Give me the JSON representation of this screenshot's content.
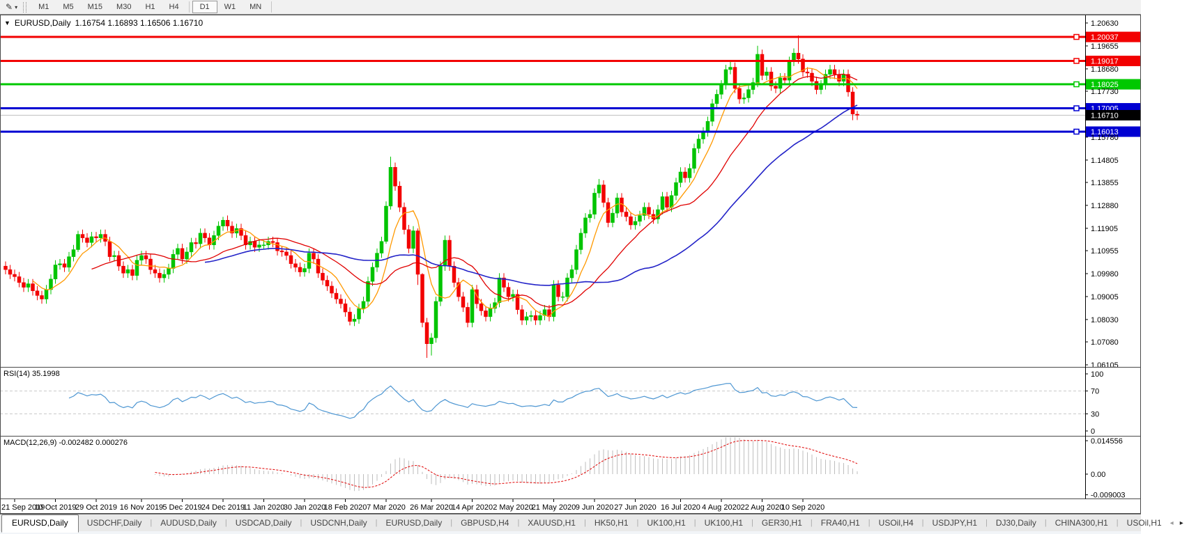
{
  "toolbar": {
    "draw_tool_glyph": "✎",
    "dropdown_glyph": "▾",
    "timeframes": [
      "M1",
      "M5",
      "M15",
      "M30",
      "H1",
      "H4",
      "D1",
      "W1",
      "MN"
    ],
    "active_timeframe": "D1"
  },
  "chart": {
    "collapse_glyph": "▼",
    "title_symbol": "EURUSD,Daily",
    "title_quotes": "1.16754 1.16893 1.16506 1.16710"
  },
  "panes": {
    "rsi": {
      "label": "RSI(14) 35.1998"
    },
    "macd": {
      "label": "MACD(12,26,9) -0.002482 0.000276"
    }
  },
  "tabs": {
    "separator": "|",
    "scroll_left_glyph": "◂",
    "scroll_right_glyph": "▸",
    "active_index": 0,
    "items": [
      "EURUSD,Daily",
      "USDCHF,Daily",
      "AUDUSD,Daily",
      "USDCAD,Daily",
      "USDCNH,Daily",
      "EURUSD,Daily",
      "GBPUSD,H4",
      "XAUUSD,H1",
      "HK50,H1",
      "UK100,H1",
      "UK100,H1",
      "GER30,H1",
      "FRA40,H1",
      "USOil,H4",
      "USDJPY,H1",
      "DJ30,Daily",
      "CHINA300,H1",
      "USOil,H1"
    ]
  },
  "chart_data": {
    "type": "candlestick",
    "symbol": "EURUSD",
    "timeframe": "Daily",
    "colors": {
      "bull": "#00c400",
      "bear": "#f20000"
    },
    "current_price": {
      "value": 1.1671,
      "label": "1.16710",
      "line_color": "#c0c0c0",
      "label_bg": "#000000"
    },
    "levels": [
      {
        "price": 1.20037,
        "label": "1.20037",
        "color": "#f20000"
      },
      {
        "price": 1.19017,
        "label": "1.19017",
        "color": "#f20000"
      },
      {
        "price": 1.18025,
        "label": "1.18025",
        "color": "#00c800"
      },
      {
        "price": 1.17005,
        "label": "1.17005",
        "color": "#0000d2"
      },
      {
        "price": 1.16013,
        "label": "1.16013",
        "color": "#0000d2"
      }
    ],
    "price_axis": [
      {
        "label": "1.20630",
        "value": 1.2063
      },
      {
        "label": "1.19655",
        "value": 1.19655
      },
      {
        "label": "1.18680",
        "value": 1.1868
      },
      {
        "label": "1.17730",
        "value": 1.1773
      },
      {
        "label": "1.15780",
        "value": 1.1578
      },
      {
        "label": "1.14805",
        "value": 1.14805
      },
      {
        "label": "1.13855",
        "value": 1.13855
      },
      {
        "label": "1.12880",
        "value": 1.1288
      },
      {
        "label": "1.11905",
        "value": 1.11905
      },
      {
        "label": "1.10955",
        "value": 1.10955
      },
      {
        "label": "1.09980",
        "value": 1.0998
      },
      {
        "label": "1.09005",
        "value": 1.09005
      },
      {
        "label": "1.08030",
        "value": 1.0803
      },
      {
        "label": "1.07080",
        "value": 1.0708
      },
      {
        "label": "1.06105",
        "value": 1.06105
      }
    ],
    "rsi_axis": [
      {
        "label": "100",
        "value": 100,
        "dashed": false
      },
      {
        "label": "70",
        "value": 70,
        "dashed": true
      },
      {
        "label": "30",
        "value": 30,
        "dashed": true
      },
      {
        "label": "0",
        "value": 0,
        "dashed": false
      }
    ],
    "macd_axis": [
      {
        "label": "0.014556",
        "value": 0.014556
      },
      {
        "label": "0.00",
        "value": 0
      },
      {
        "label": "-0.009003",
        "value": -0.009003
      }
    ],
    "moving_averages": [
      {
        "period": 7,
        "color": "#ff9900",
        "width": 1.3
      },
      {
        "period": 20,
        "color": "#e00000",
        "width": 1.3
      },
      {
        "period": 45,
        "color": "#2323c8",
        "width": 1.6
      }
    ],
    "indicators": [
      {
        "name": "RSI",
        "params": [
          14
        ],
        "line_color": "#4d96d2",
        "value": 35.1998
      },
      {
        "name": "MACD",
        "params": [
          12,
          26,
          9
        ],
        "hist_color": "#bebebe",
        "signal_color": "#e00000",
        "values": [
          -0.002482,
          0.000276
        ]
      }
    ],
    "x_tick_labels": [
      "21 Sep 2019",
      "10 Oct 2019",
      "29 Oct 2019",
      "16 Nov 2019",
      "5 Dec 2019",
      "24 Dec 2019",
      "11 Jan 2020",
      "30 Jan 2020",
      "18 Feb 2020",
      "7 Mar 2020",
      "26 Mar 2020",
      "14 Apr 2020",
      "2 May 2020",
      "21 May 2020",
      "9 Jun 2020",
      "27 Jun 2020",
      "16 Jul 2020",
      "4 Aug 2020",
      "22 Aug 2020",
      "10 Sep 2020"
    ],
    "tick_candle_indices": [
      2,
      11,
      20,
      30,
      39,
      48,
      57,
      66,
      75,
      84,
      94,
      103,
      112,
      121,
      130,
      139,
      149,
      158,
      167,
      176
    ],
    "ohlc": [
      [
        1.103,
        1.105,
        1.0995,
        1.1015
      ],
      [
        1.1015,
        1.1035,
        1.0975,
        1.0995
      ],
      [
        1.0995,
        1.1015,
        1.0965,
        1.0985
      ],
      [
        1.0985,
        1.1005,
        1.094,
        1.096
      ],
      [
        1.096,
        1.098,
        1.092,
        1.094
      ],
      [
        1.094,
        1.0975,
        1.092,
        1.0955
      ],
      [
        1.0955,
        1.0975,
        1.0905,
        1.0925
      ],
      [
        1.0925,
        1.0945,
        1.0885,
        1.0905
      ],
      [
        1.0905,
        1.0925,
        1.087,
        1.089
      ],
      [
        1.089,
        1.095,
        1.087,
        1.093
      ],
      [
        1.093,
        1.0995,
        1.091,
        1.0975
      ],
      [
        1.0975,
        1.1055,
        1.0955,
        1.1035
      ],
      [
        1.1035,
        1.106,
        1.1015,
        1.104
      ],
      [
        1.104,
        1.106,
        1.1005,
        1.1025
      ],
      [
        1.1025,
        1.109,
        1.1005,
        1.107
      ],
      [
        1.107,
        1.112,
        1.105,
        1.11
      ],
      [
        1.11,
        1.118,
        1.109,
        1.1165
      ],
      [
        1.1165,
        1.1185,
        1.113,
        1.115
      ],
      [
        1.115,
        1.117,
        1.111,
        1.113
      ],
      [
        1.113,
        1.1175,
        1.111,
        1.1155
      ],
      [
        1.1155,
        1.1175,
        1.113,
        1.115
      ],
      [
        1.115,
        1.1185,
        1.113,
        1.1165
      ],
      [
        1.1165,
        1.1185,
        1.1115,
        1.1135
      ],
      [
        1.1135,
        1.1155,
        1.105,
        1.107
      ],
      [
        1.107,
        1.1095,
        1.105,
        1.1075
      ],
      [
        1.1075,
        1.1095,
        1.101,
        1.103
      ],
      [
        1.103,
        1.105,
        1.098,
        1.1
      ],
      [
        1.1,
        1.1035,
        1.098,
        1.1015
      ],
      [
        1.1015,
        1.1035,
        1.097,
        1.099
      ],
      [
        1.099,
        1.1075,
        1.097,
        1.1055
      ],
      [
        1.1055,
        1.1095,
        1.1035,
        1.1075
      ],
      [
        1.1075,
        1.1095,
        1.104,
        1.106
      ],
      [
        1.106,
        1.108,
        1.0995,
        1.1015
      ],
      [
        1.1015,
        1.1035,
        1.098,
        1.1
      ],
      [
        1.1,
        1.102,
        1.096,
        1.098
      ],
      [
        1.098,
        1.1015,
        1.096,
        1.0995
      ],
      [
        1.0995,
        1.104,
        1.0975,
        1.102
      ],
      [
        1.102,
        1.11,
        1.1,
        1.108
      ],
      [
        1.108,
        1.1125,
        1.106,
        1.1105
      ],
      [
        1.1105,
        1.1125,
        1.104,
        1.106
      ],
      [
        1.106,
        1.111,
        1.104,
        1.109
      ],
      [
        1.109,
        1.115,
        1.107,
        1.113
      ],
      [
        1.113,
        1.115,
        1.1105,
        1.1125
      ],
      [
        1.1125,
        1.119,
        1.1105,
        1.117
      ],
      [
        1.117,
        1.119,
        1.113,
        1.115
      ],
      [
        1.115,
        1.117,
        1.11,
        1.112
      ],
      [
        1.112,
        1.118,
        1.11,
        1.116
      ],
      [
        1.116,
        1.122,
        1.114,
        1.12
      ],
      [
        1.12,
        1.1239,
        1.118,
        1.1225
      ],
      [
        1.1225,
        1.1245,
        1.118,
        1.12
      ],
      [
        1.12,
        1.122,
        1.115,
        1.117
      ],
      [
        1.117,
        1.121,
        1.115,
        1.119
      ],
      [
        1.119,
        1.121,
        1.114,
        1.116
      ],
      [
        1.116,
        1.118,
        1.11,
        1.112
      ],
      [
        1.112,
        1.1155,
        1.11,
        1.1135
      ],
      [
        1.1135,
        1.1155,
        1.109,
        1.111
      ],
      [
        1.111,
        1.114,
        1.109,
        1.112
      ],
      [
        1.112,
        1.114,
        1.11,
        1.112
      ],
      [
        1.112,
        1.1155,
        1.11,
        1.1135
      ],
      [
        1.1135,
        1.1155,
        1.111,
        1.113
      ],
      [
        1.113,
        1.115,
        1.1075,
        1.1095
      ],
      [
        1.1095,
        1.1115,
        1.107,
        1.109
      ],
      [
        1.109,
        1.111,
        1.1055,
        1.1075
      ],
      [
        1.1075,
        1.1095,
        1.102,
        1.104
      ],
      [
        1.104,
        1.106,
        1.1005,
        1.1025
      ],
      [
        1.1025,
        1.1045,
        1.0985,
        1.1005
      ],
      [
        1.1005,
        1.104,
        1.0985,
        1.102
      ],
      [
        1.102,
        1.1105,
        1.1,
        1.1085
      ],
      [
        1.1085,
        1.1105,
        1.104,
        1.106
      ],
      [
        1.106,
        1.108,
        1.098,
        1.1
      ],
      [
        1.1,
        1.102,
        1.095,
        1.097
      ],
      [
        1.097,
        1.099,
        1.0925,
        1.0945
      ],
      [
        1.0945,
        1.0965,
        1.0895,
        1.0915
      ],
      [
        1.0915,
        1.0935,
        1.087,
        1.089
      ],
      [
        1.089,
        1.091,
        1.085,
        1.087
      ],
      [
        1.087,
        1.089,
        1.0815,
        1.0835
      ],
      [
        1.0835,
        1.0855,
        1.0778,
        1.0795
      ],
      [
        1.0795,
        1.0825,
        1.0775,
        1.0805
      ],
      [
        1.0805,
        1.087,
        1.0785,
        1.085
      ],
      [
        1.085,
        1.09,
        1.083,
        1.088
      ],
      [
        1.088,
        1.0985,
        1.086,
        1.0965
      ],
      [
        1.0965,
        1.1045,
        1.0945,
        1.1025
      ],
      [
        1.1025,
        1.1105,
        1.1005,
        1.1085
      ],
      [
        1.1085,
        1.1155,
        1.1065,
        1.1135
      ],
      [
        1.1135,
        1.1305,
        1.1125,
        1.1285
      ],
      [
        1.1285,
        1.1495,
        1.127,
        1.145
      ],
      [
        1.145,
        1.147,
        1.135,
        1.137
      ],
      [
        1.137,
        1.139,
        1.126,
        1.128
      ],
      [
        1.128,
        1.13,
        1.1165,
        1.1185
      ],
      [
        1.1185,
        1.1205,
        1.1085,
        1.1105
      ],
      [
        1.1105,
        1.12,
        1.1085,
        1.118
      ],
      [
        1.118,
        1.119,
        1.095,
        1.0995
      ],
      [
        1.0995,
        1.1,
        1.077,
        1.079
      ],
      [
        1.079,
        1.081,
        1.064,
        1.07
      ],
      [
        1.07,
        1.0745,
        1.065,
        1.0725
      ],
      [
        1.0725,
        1.09,
        1.0705,
        1.088
      ],
      [
        1.088,
        1.105,
        1.086,
        1.103
      ],
      [
        1.103,
        1.116,
        1.101,
        1.114
      ],
      [
        1.114,
        1.116,
        1.101,
        1.103
      ],
      [
        1.103,
        1.105,
        1.094,
        1.096
      ],
      [
        1.096,
        1.098,
        1.088,
        1.09
      ],
      [
        1.09,
        1.092,
        1.0835,
        1.0855
      ],
      [
        1.0855,
        1.0875,
        1.077,
        1.079
      ],
      [
        1.079,
        1.095,
        1.077,
        1.093
      ],
      [
        1.093,
        1.095,
        1.085,
        1.087
      ],
      [
        1.087,
        1.089,
        1.082,
        1.084
      ],
      [
        1.084,
        1.086,
        1.0795,
        1.0815
      ],
      [
        1.0815,
        1.087,
        1.0795,
        1.085
      ],
      [
        1.085,
        1.0895,
        1.083,
        1.0875
      ],
      [
        1.0875,
        1.1,
        1.0855,
        1.098
      ],
      [
        1.098,
        1.1,
        1.092,
        1.094
      ],
      [
        1.094,
        1.096,
        1.088,
        1.09
      ],
      [
        1.09,
        1.093,
        1.088,
        1.091
      ],
      [
        1.091,
        1.093,
        1.0825,
        1.0845
      ],
      [
        1.0845,
        1.0865,
        1.078,
        1.08
      ],
      [
        1.08,
        1.0835,
        1.078,
        1.0815
      ],
      [
        1.0815,
        1.084,
        1.0795,
        1.082
      ],
      [
        1.082,
        1.084,
        1.078,
        1.08
      ],
      [
        1.08,
        1.084,
        1.078,
        1.082
      ],
      [
        1.082,
        1.0865,
        1.08,
        1.0845
      ],
      [
        1.0845,
        1.0865,
        1.0795,
        1.0815
      ],
      [
        1.0815,
        1.097,
        1.0795,
        1.095
      ],
      [
        1.095,
        1.097,
        1.088,
        1.09
      ],
      [
        1.09,
        1.092,
        1.088,
        1.09
      ],
      [
        1.09,
        1.1,
        1.088,
        1.098
      ],
      [
        1.098,
        1.1035,
        1.096,
        1.1015
      ],
      [
        1.1015,
        1.112,
        1.0995,
        1.11
      ],
      [
        1.11,
        1.119,
        1.108,
        1.117
      ],
      [
        1.117,
        1.1255,
        1.115,
        1.1235
      ],
      [
        1.1235,
        1.127,
        1.1215,
        1.125
      ],
      [
        1.125,
        1.136,
        1.123,
        1.134
      ],
      [
        1.134,
        1.14,
        1.132,
        1.1375
      ],
      [
        1.1375,
        1.1395,
        1.128,
        1.13
      ],
      [
        1.13,
        1.132,
        1.1195,
        1.1215
      ],
      [
        1.1215,
        1.1275,
        1.1195,
        1.1255
      ],
      [
        1.1255,
        1.134,
        1.1235,
        1.132
      ],
      [
        1.132,
        1.134,
        1.124,
        1.126
      ],
      [
        1.126,
        1.128,
        1.122,
        1.124
      ],
      [
        1.124,
        1.126,
        1.1185,
        1.1205
      ],
      [
        1.1205,
        1.124,
        1.1185,
        1.122
      ],
      [
        1.122,
        1.1265,
        1.12,
        1.1245
      ],
      [
        1.1245,
        1.13,
        1.1225,
        1.128
      ],
      [
        1.128,
        1.13,
        1.123,
        1.125
      ],
      [
        1.125,
        1.127,
        1.121,
        1.123
      ],
      [
        1.123,
        1.129,
        1.121,
        1.127
      ],
      [
        1.127,
        1.1345,
        1.125,
        1.1325
      ],
      [
        1.1325,
        1.1345,
        1.126,
        1.128
      ],
      [
        1.128,
        1.135,
        1.126,
        1.133
      ],
      [
        1.133,
        1.1405,
        1.131,
        1.1385
      ],
      [
        1.1385,
        1.145,
        1.1365,
        1.143
      ],
      [
        1.143,
        1.145,
        1.1385,
        1.1405
      ],
      [
        1.1405,
        1.1465,
        1.1385,
        1.1445
      ],
      [
        1.1445,
        1.155,
        1.1425,
        1.153
      ],
      [
        1.153,
        1.159,
        1.151,
        1.157
      ],
      [
        1.157,
        1.162,
        1.155,
        1.16
      ],
      [
        1.16,
        1.1665,
        1.158,
        1.1645
      ],
      [
        1.1645,
        1.174,
        1.1625,
        1.172
      ],
      [
        1.172,
        1.178,
        1.17,
        1.176
      ],
      [
        1.176,
        1.182,
        1.174,
        1.18
      ],
      [
        1.18,
        1.1885,
        1.178,
        1.1865
      ],
      [
        1.1865,
        1.1905,
        1.1845,
        1.1875
      ],
      [
        1.1875,
        1.1895,
        1.1765,
        1.1785
      ],
      [
        1.1785,
        1.1805,
        1.172,
        1.174
      ],
      [
        1.174,
        1.1765,
        1.172,
        1.1745
      ],
      [
        1.1745,
        1.18,
        1.1725,
        1.178
      ],
      [
        1.178,
        1.183,
        1.176,
        1.181
      ],
      [
        1.181,
        1.1966,
        1.179,
        1.193
      ],
      [
        1.193,
        1.195,
        1.182,
        1.184
      ],
      [
        1.184,
        1.1875,
        1.182,
        1.1855
      ],
      [
        1.1855,
        1.1875,
        1.1775,
        1.1795
      ],
      [
        1.1795,
        1.1815,
        1.1765,
        1.1785
      ],
      [
        1.1785,
        1.185,
        1.1765,
        1.183
      ],
      [
        1.183,
        1.185,
        1.18,
        1.182
      ],
      [
        1.182,
        1.192,
        1.18,
        1.19
      ],
      [
        1.19,
        1.1955,
        1.188,
        1.1935
      ],
      [
        1.1935,
        1.201,
        1.189,
        1.191
      ],
      [
        1.191,
        1.193,
        1.1835,
        1.1855
      ],
      [
        1.1855,
        1.1875,
        1.183,
        1.185
      ],
      [
        1.185,
        1.187,
        1.1795,
        1.1815
      ],
      [
        1.1815,
        1.1835,
        1.176,
        1.178
      ],
      [
        1.178,
        1.182,
        1.176,
        1.18
      ],
      [
        1.18,
        1.1865,
        1.178,
        1.1845
      ],
      [
        1.1845,
        1.1885,
        1.1825,
        1.1865
      ],
      [
        1.1865,
        1.1885,
        1.1825,
        1.1845
      ],
      [
        1.1845,
        1.1865,
        1.1795,
        1.1815
      ],
      [
        1.1815,
        1.1865,
        1.1795,
        1.1845
      ],
      [
        1.1845,
        1.1865,
        1.175,
        1.177
      ],
      [
        1.177,
        1.179,
        1.165,
        1.1676
      ],
      [
        1.16754,
        1.16893,
        1.16506,
        1.1671
      ]
    ]
  }
}
